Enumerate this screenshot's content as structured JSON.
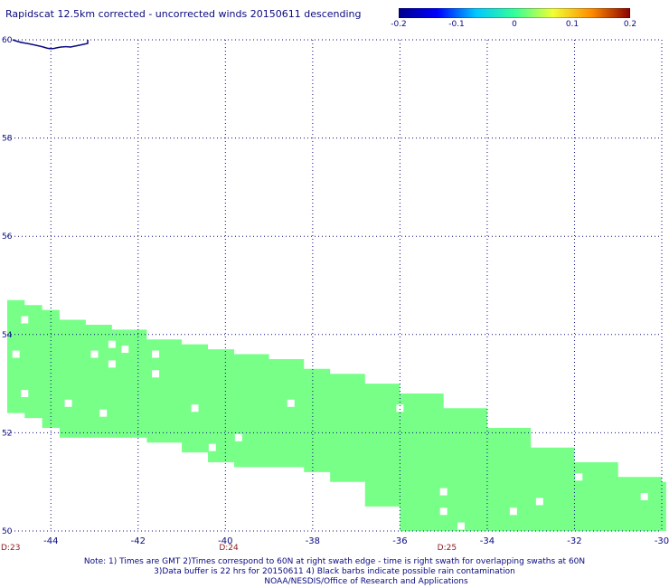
{
  "title": "Rapidscat 12.5km corrected - uncorrected winds 20150611 descending",
  "colorbar": {
    "ticks": [
      "-0.2",
      "-0.1",
      "0",
      "0.1",
      "0.2"
    ],
    "tick_values": [
      -0.2,
      -0.1,
      0,
      0.1,
      0.2
    ],
    "range": [
      -0.2,
      0.2
    ],
    "colors": [
      "#00008b",
      "#0000ff",
      "#00c8ff",
      "#33ff99",
      "#f0ff33",
      "#ff8c00",
      "#8b0000"
    ]
  },
  "chart_data": {
    "type": "map",
    "xlim": [
      -45,
      -30
    ],
    "ylim": [
      50,
      60
    ],
    "x_ticks": [
      -44,
      -42,
      -40,
      -38,
      -36,
      -34,
      -32,
      -30
    ],
    "x_tick_labels": [
      "-44",
      "-42",
      "-40",
      "-38",
      "-36",
      "-34",
      "-32",
      "-30"
    ],
    "y_ticks": [
      50,
      52,
      54,
      56,
      58,
      60
    ],
    "y_tick_labels": [
      "50",
      "52",
      "54",
      "56",
      "58",
      "60"
    ],
    "grid": true,
    "swath_color": "#77ff88",
    "swath_value": 0,
    "swath_columns": [
      {
        "lon": -45.0,
        "lat_top": 54.7,
        "lat_bot": 52.4
      },
      {
        "lon": -44.6,
        "lat_top": 54.6,
        "lat_bot": 52.3
      },
      {
        "lon": -44.2,
        "lat_top": 54.5,
        "lat_bot": 52.1
      },
      {
        "lon": -43.8,
        "lat_top": 54.3,
        "lat_bot": 51.9
      },
      {
        "lon": -43.2,
        "lat_top": 54.2,
        "lat_bot": 51.9
      },
      {
        "lon": -42.6,
        "lat_top": 54.1,
        "lat_bot": 51.9
      },
      {
        "lon": -42.2,
        "lat_top": 54.1,
        "lat_bot": 51.9
      },
      {
        "lon": -41.8,
        "lat_top": 53.9,
        "lat_bot": 51.8
      },
      {
        "lon": -41.0,
        "lat_top": 53.8,
        "lat_bot": 51.6
      },
      {
        "lon": -40.4,
        "lat_top": 53.7,
        "lat_bot": 51.4
      },
      {
        "lon": -39.8,
        "lat_top": 53.6,
        "lat_bot": 51.3
      },
      {
        "lon": -39.0,
        "lat_top": 53.5,
        "lat_bot": 51.3
      },
      {
        "lon": -38.2,
        "lat_top": 53.3,
        "lat_bot": 51.2
      },
      {
        "lon": -37.6,
        "lat_top": 53.2,
        "lat_bot": 51.0
      },
      {
        "lon": -36.8,
        "lat_top": 53.0,
        "lat_bot": 50.5
      },
      {
        "lon": -36.0,
        "lat_top": 52.8,
        "lat_bot": 50.0
      },
      {
        "lon": -35.0,
        "lat_top": 52.5,
        "lat_bot": 50.0
      },
      {
        "lon": -34.0,
        "lat_top": 52.1,
        "lat_bot": 50.0
      },
      {
        "lon": -33.0,
        "lat_top": 51.7,
        "lat_bot": 50.0
      },
      {
        "lon": -32.0,
        "lat_top": 51.4,
        "lat_bot": 50.0
      },
      {
        "lon": -31.0,
        "lat_top": 51.1,
        "lat_bot": 50.0
      },
      {
        "lon": -30.0,
        "lat_top": 51.0,
        "lat_bot": 50.0
      }
    ],
    "missing_cells": [
      {
        "lon": -44.6,
        "lat": 54.3
      },
      {
        "lon": -44.8,
        "lat": 53.6
      },
      {
        "lon": -44.6,
        "lat": 52.8
      },
      {
        "lon": -43.6,
        "lat": 52.6
      },
      {
        "lon": -43.0,
        "lat": 53.6
      },
      {
        "lon": -42.8,
        "lat": 52.4
      },
      {
        "lon": -42.6,
        "lat": 53.8
      },
      {
        "lon": -42.6,
        "lat": 53.4
      },
      {
        "lon": -42.3,
        "lat": 53.7
      },
      {
        "lon": -41.6,
        "lat": 53.6
      },
      {
        "lon": -41.6,
        "lat": 53.2
      },
      {
        "lon": -40.7,
        "lat": 52.5
      },
      {
        "lon": -40.3,
        "lat": 51.7
      },
      {
        "lon": -39.7,
        "lat": 51.9
      },
      {
        "lon": -38.5,
        "lat": 52.6
      },
      {
        "lon": -36.0,
        "lat": 52.5
      },
      {
        "lon": -35.0,
        "lat": 50.8
      },
      {
        "lon": -35.0,
        "lat": 50.4
      },
      {
        "lon": -34.6,
        "lat": 50.1
      },
      {
        "lon": -33.4,
        "lat": 50.4
      },
      {
        "lon": -32.8,
        "lat": 50.6
      },
      {
        "lon": -31.9,
        "lat": 51.1
      },
      {
        "lon": -30.4,
        "lat": 50.7
      }
    ]
  },
  "time_labels": [
    {
      "text": "D:23",
      "lon": -45.0
    },
    {
      "text": "D:24",
      "lon": -40.0
    },
    {
      "text": "D:25",
      "lon": -35.0
    }
  ],
  "notes": {
    "line1": "Note: 1) Times are GMT 2)Times correspond to 60N at right swath edge - time is right swath for overlapping swaths at 60N",
    "line2": "3)Data buffer is 22 hrs for 20150611 4) Black barbs indicate possible rain contamination",
    "line3": "NOAA/NESDIS/Office of Research and Applications"
  }
}
